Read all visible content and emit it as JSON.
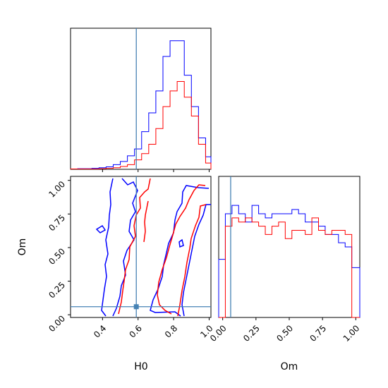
{
  "chart_data": {
    "type": "corner",
    "parameters": [
      "H0",
      "Om"
    ],
    "xlabel_h0": "H0",
    "xlabel_om": "Om",
    "ylabel_om": "Om",
    "truth": {
      "H0": 0.59,
      "Om": 0.06
    },
    "truth_color": "#4682b4",
    "series": [
      {
        "color": "#0000ff"
      },
      {
        "color": "#ff0000"
      }
    ],
    "panels": {
      "h0_hist": {
        "xlim": [
          0.22,
          1.01
        ],
        "bin_edges": [
          0.22,
          0.26,
          0.3,
          0.34,
          0.38,
          0.42,
          0.46,
          0.5,
          0.54,
          0.58,
          0.62,
          0.66,
          0.7,
          0.74,
          0.78,
          0.82,
          0.86,
          0.9,
          0.94,
          0.98,
          1.01
        ],
        "blue": [
          0.1,
          0.2,
          0.2,
          0.3,
          0.5,
          0.8,
          1.5,
          2.5,
          4.3,
          6.5,
          12,
          18,
          25,
          36,
          41,
          41,
          30,
          20,
          10,
          4
        ],
        "red": [
          0.1,
          0.1,
          0.1,
          0.1,
          0.2,
          0.3,
          0.5,
          0.9,
          1.5,
          3,
          5,
          8,
          13,
          20,
          25,
          28,
          23,
          17,
          8,
          2
        ],
        "ylim": [
          0,
          45
        ]
      },
      "om_hist": {
        "xlim": [
          -0.03,
          1.03
        ],
        "bin_edges": [
          -0.03,
          0.02,
          0.07,
          0.12,
          0.17,
          0.22,
          0.27,
          0.32,
          0.37,
          0.42,
          0.47,
          0.52,
          0.57,
          0.62,
          0.67,
          0.72,
          0.77,
          0.82,
          0.87,
          0.92,
          0.97,
          1.03
        ],
        "blue": [
          14,
          25,
          27,
          25,
          23,
          27,
          25,
          24,
          25,
          25,
          25,
          26,
          25,
          23,
          23,
          22,
          20,
          20,
          18,
          17,
          12
        ],
        "red": [
          0,
          22,
          24,
          23,
          24,
          23,
          22,
          20,
          22,
          23,
          19,
          21,
          21,
          20,
          24,
          21,
          20,
          21,
          21,
          20,
          0
        ],
        "ylim": [
          0,
          34
        ]
      },
      "joint": {
        "xlim": [
          0.22,
          1.01
        ],
        "ylim": [
          -0.02,
          1.03
        ],
        "xticks": [
          "0.4",
          "0.6",
          "0.8",
          "1.0"
        ],
        "xtick_values": [
          0.4,
          0.6,
          0.8,
          1.0
        ],
        "yticks": [
          "0.00",
          "0.25",
          "0.50",
          "0.75",
          "1.00"
        ],
        "ytick_values": [
          0.0,
          0.25,
          0.5,
          0.75,
          1.0
        ]
      },
      "om_xticks": [
        "0.00",
        "0.25",
        "0.50",
        "0.75",
        "1.00"
      ],
      "om_xtick_values": [
        0.0,
        0.25,
        0.5,
        0.75,
        1.0
      ]
    }
  }
}
